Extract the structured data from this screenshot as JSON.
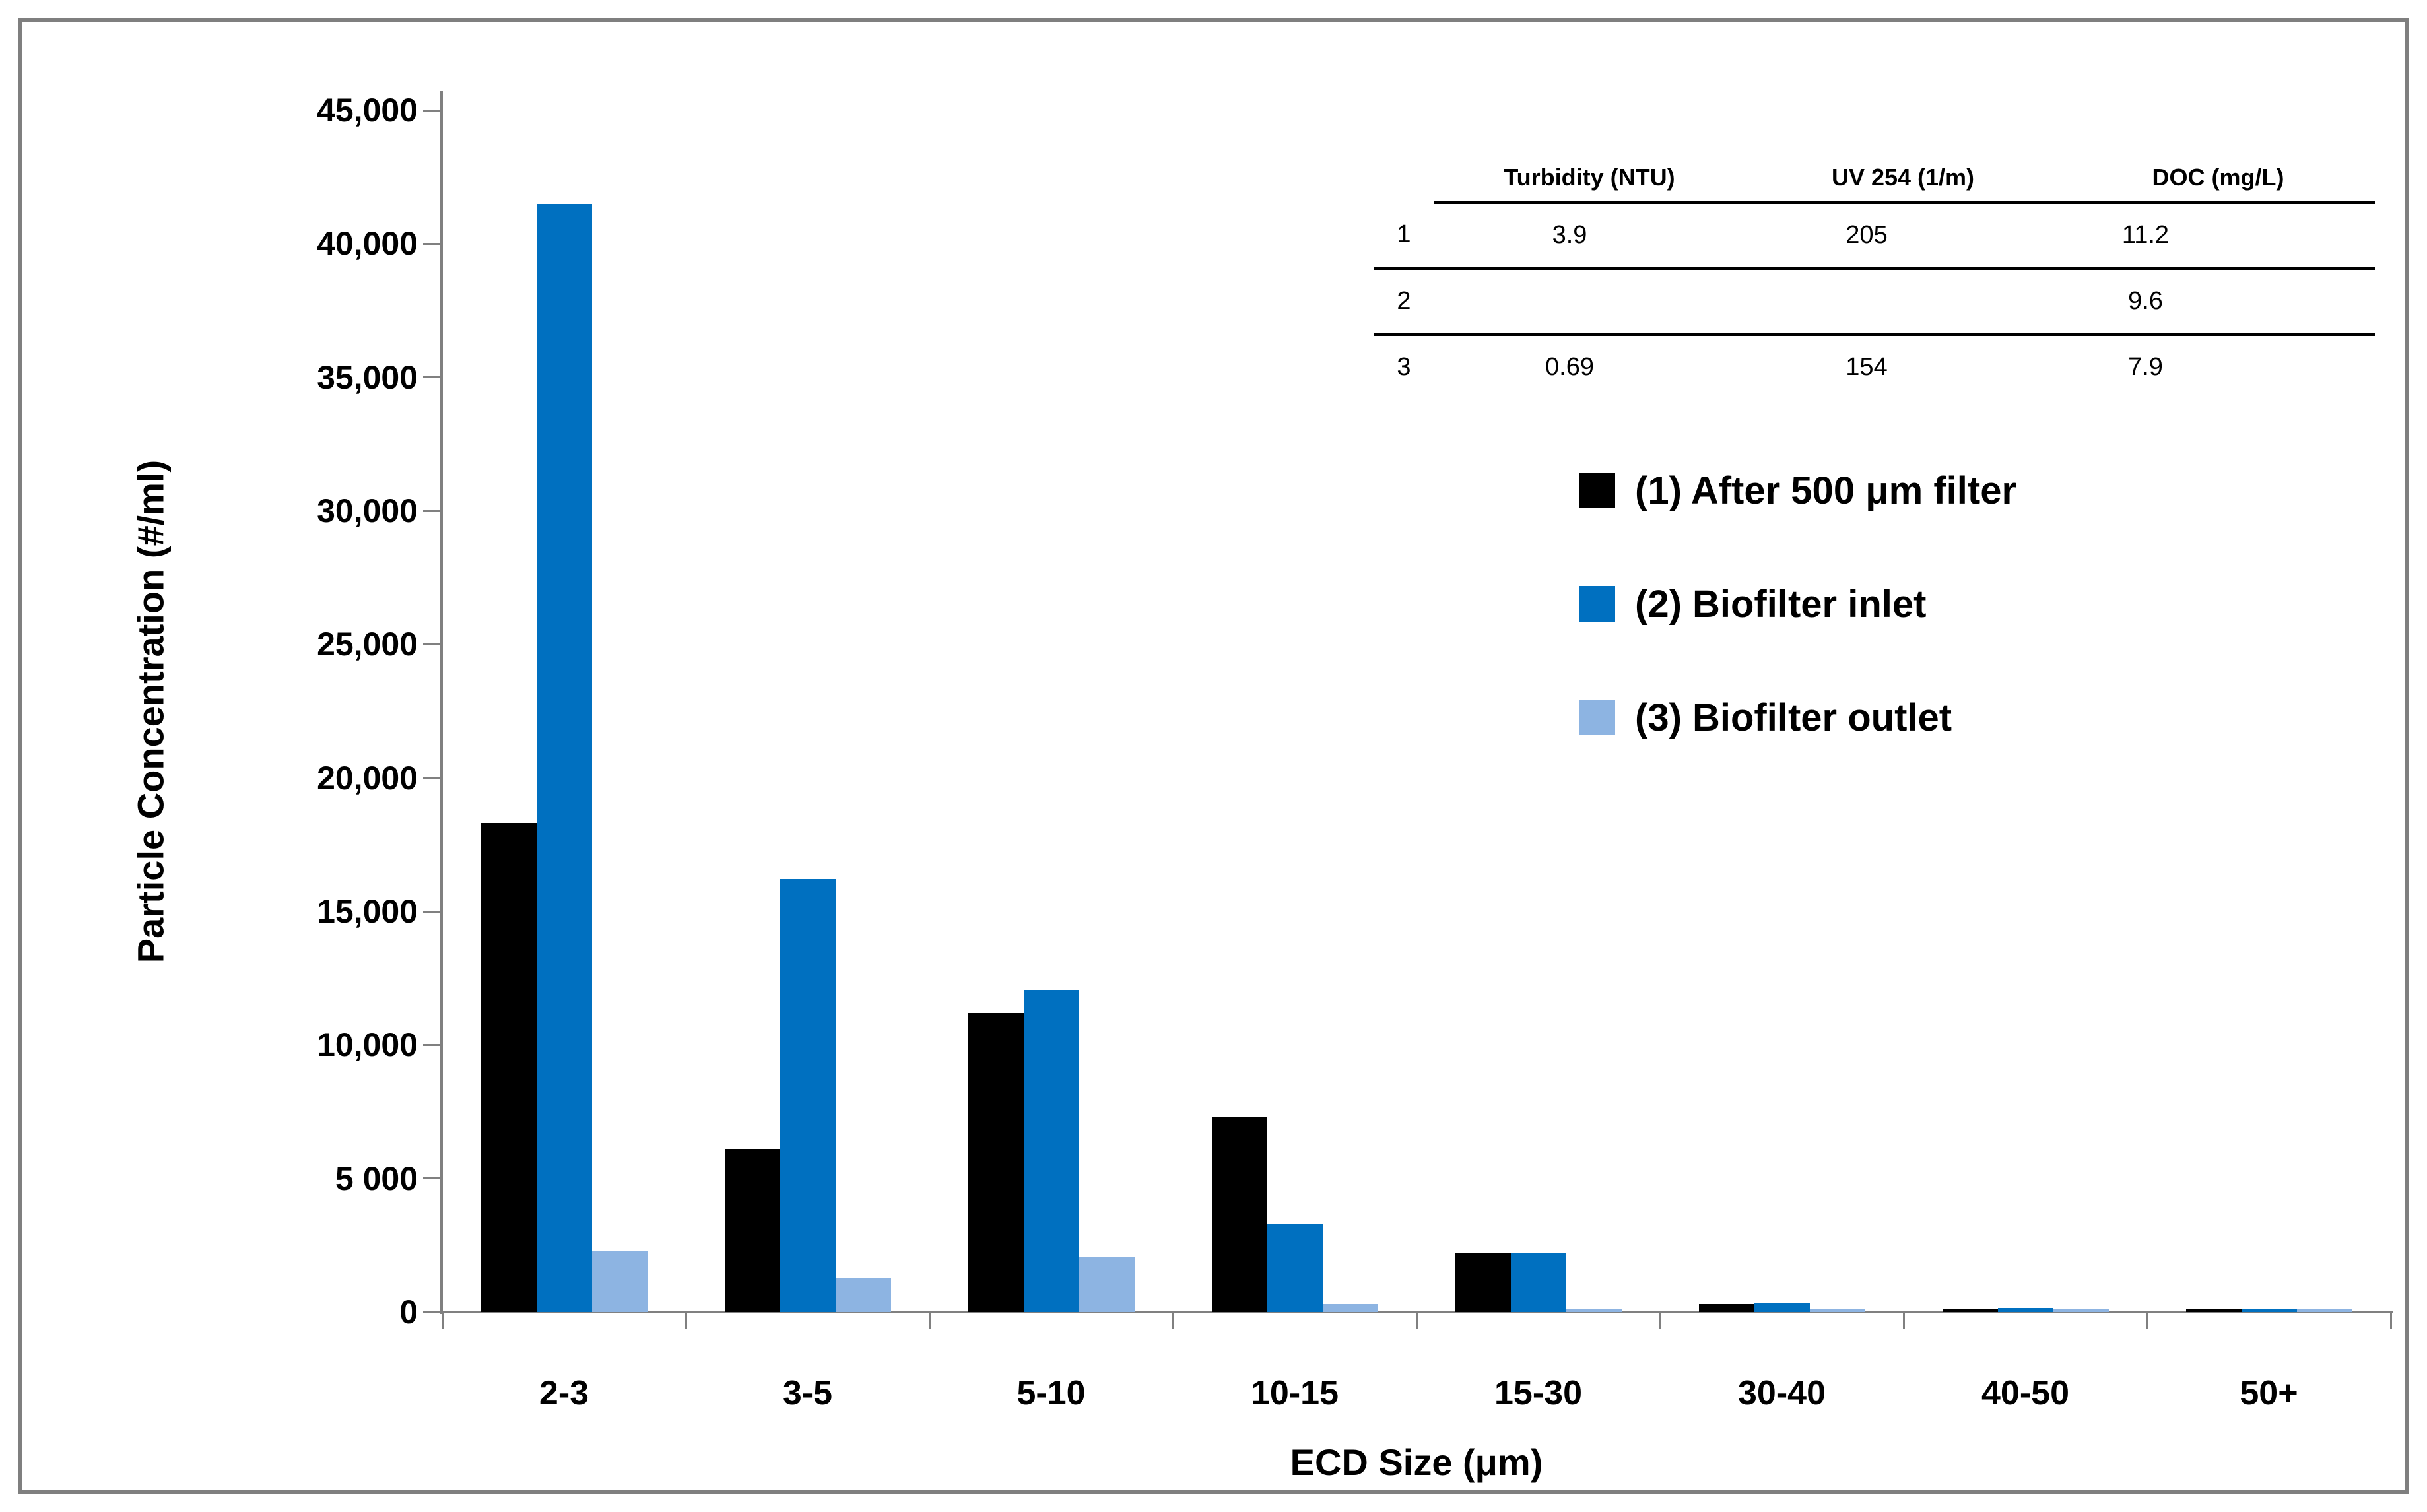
{
  "figure": {
    "background_color": "#ffffff",
    "frame_color": "#7f7f7f",
    "axis_color": "#808080",
    "text_color": "#000000"
  },
  "chart_data": {
    "type": "bar",
    "title": "",
    "xlabel": "ECD Size (μm)",
    "ylabel": "Particle Concentration (#/ml)",
    "ylim": [
      0,
      45000
    ],
    "grid": false,
    "legend_position": "right-middle",
    "categories": [
      "2-3",
      "3-5",
      "5-10",
      "10-15",
      "15-30",
      "30-40",
      "40-50",
      "50+"
    ],
    "series": [
      {
        "name": "(1) After 500 μm filter",
        "color": "#000000",
        "values": [
          18300,
          6100,
          11200,
          7300,
          2200,
          300,
          120,
          110
        ]
      },
      {
        "name": "(2) Biofilter inlet",
        "color": "#0070c0",
        "values": [
          41500,
          16200,
          12050,
          3300,
          2200,
          350,
          140,
          130
        ]
      },
      {
        "name": "(3) Biofilter outlet",
        "color": "#8db4e2",
        "values": [
          2300,
          1250,
          2050,
          300,
          120,
          80,
          50,
          50
        ]
      }
    ],
    "yticks": [
      {
        "value": 0,
        "label": "0"
      },
      {
        "value": 5000,
        "label": "5 000"
      },
      {
        "value": 10000,
        "label": "10,000"
      },
      {
        "value": 15000,
        "label": "15,000"
      },
      {
        "value": 20000,
        "label": "20,000"
      },
      {
        "value": 25000,
        "label": "25,000"
      },
      {
        "value": 30000,
        "label": "30,000"
      },
      {
        "value": 35000,
        "label": "35,000"
      },
      {
        "value": 40000,
        "label": "40,000"
      },
      {
        "value": 45000,
        "label": "45,000"
      }
    ]
  },
  "inset_table": {
    "col_headers": [
      "Turbidity (NTU)",
      "UV 254 (1/m)",
      "DOC (mg/L)"
    ],
    "rows": [
      {
        "id": "1",
        "turbidity": "3.9",
        "uv254": "205",
        "doc": "11.2"
      },
      {
        "id": "2",
        "turbidity": "",
        "uv254": "",
        "doc": "9.6"
      },
      {
        "id": "3",
        "turbidity": "0.69",
        "uv254": "154",
        "doc": "7.9"
      }
    ]
  }
}
